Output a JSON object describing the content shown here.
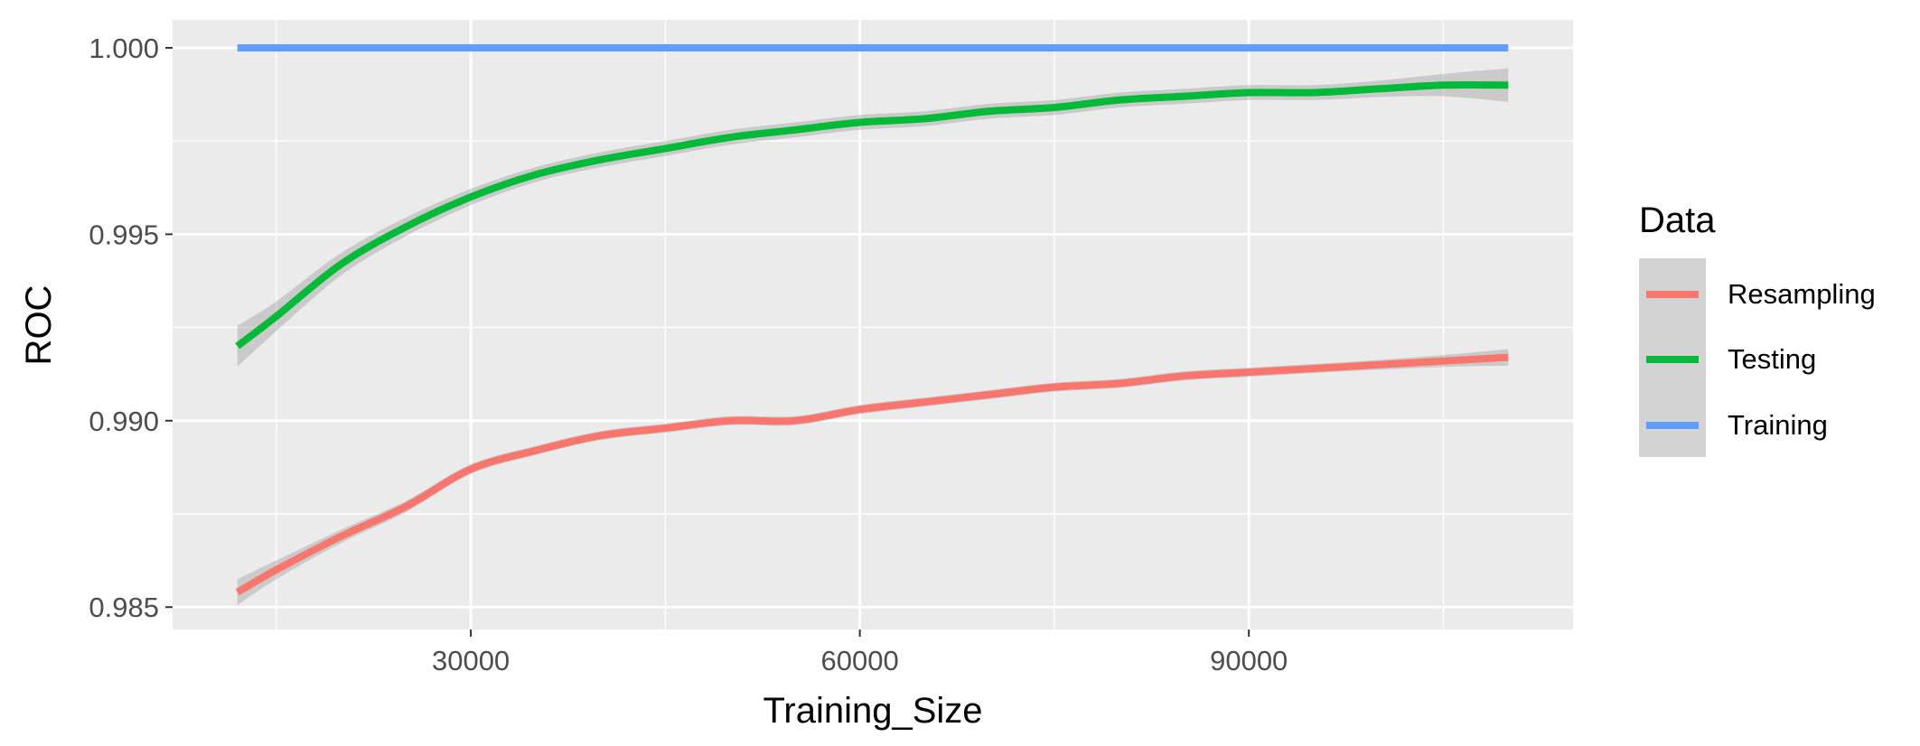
{
  "chart_data": {
    "type": "line",
    "title": "",
    "xlabel": "Training_Size",
    "ylabel": "ROC",
    "xlim": [
      7000,
      115000
    ],
    "ylim": [
      0.9844,
      1.00075
    ],
    "x_ticks": [
      30000,
      60000,
      90000
    ],
    "x_tick_labels": [
      "30000",
      "60000",
      "90000"
    ],
    "y_ticks": [
      0.985,
      0.99,
      0.995,
      1.0
    ],
    "y_tick_labels": [
      "0.985",
      "0.990",
      "0.995",
      "1.000"
    ],
    "grid": true,
    "background": "#ebebeb",
    "legend": {
      "title": "Data",
      "placement": "right",
      "entries": [
        "Resampling",
        "Testing",
        "Training"
      ]
    },
    "series": [
      {
        "name": "Resampling",
        "color": "#f8766d",
        "x": [
          12000,
          15000,
          20000,
          25000,
          30000,
          35000,
          40000,
          45000,
          50000,
          55000,
          60000,
          65000,
          70000,
          75000,
          80000,
          85000,
          90000,
          95000,
          100000,
          105000,
          110000
        ],
        "y": [
          0.9854,
          0.986,
          0.9869,
          0.9877,
          0.9887,
          0.9892,
          0.9896,
          0.9898,
          0.99,
          0.99,
          0.9903,
          0.9905,
          0.9907,
          0.9909,
          0.991,
          0.9912,
          0.9913,
          0.9914,
          0.9915,
          0.9916,
          0.9917
        ],
        "se": [
          0.00035,
          0.00025,
          0.00018,
          0.00015,
          0.00013,
          0.00012,
          0.00012,
          0.00012,
          0.00012,
          0.00012,
          0.00012,
          0.00012,
          0.00012,
          0.00012,
          0.00012,
          0.00012,
          0.00012,
          0.00012,
          0.00013,
          0.00016,
          0.00022
        ]
      },
      {
        "name": "Testing",
        "color": "#00ba38",
        "x": [
          12000,
          15000,
          20000,
          25000,
          30000,
          35000,
          40000,
          45000,
          50000,
          55000,
          60000,
          65000,
          70000,
          75000,
          80000,
          85000,
          90000,
          95000,
          100000,
          105000,
          110000
        ],
        "y": [
          0.992,
          0.9928,
          0.9942,
          0.9952,
          0.996,
          0.9966,
          0.997,
          0.9973,
          0.9976,
          0.9978,
          0.998,
          0.9981,
          0.9983,
          0.9984,
          0.9986,
          0.9987,
          0.9988,
          0.9988,
          0.9989,
          0.999,
          0.999
        ],
        "se": [
          0.00055,
          0.0004,
          0.0003,
          0.00025,
          0.00022,
          0.0002,
          0.0002,
          0.0002,
          0.0002,
          0.0002,
          0.0002,
          0.0002,
          0.0002,
          0.0002,
          0.0002,
          0.0002,
          0.0002,
          0.0002,
          0.00022,
          0.0003,
          0.00045
        ]
      },
      {
        "name": "Training",
        "color": "#619cff",
        "x": [
          12000,
          110000
        ],
        "y": [
          1.0,
          1.0
        ],
        "se": [
          0,
          0
        ]
      }
    ]
  }
}
